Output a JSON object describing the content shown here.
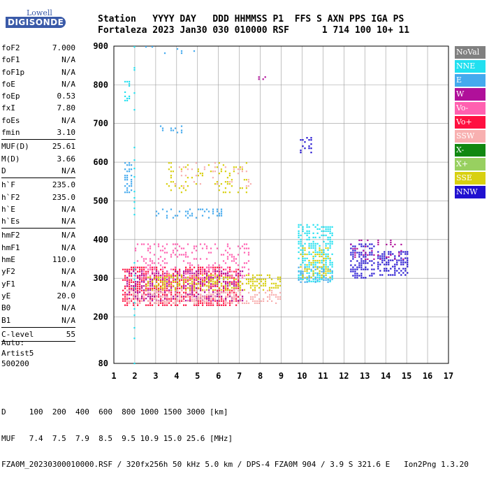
{
  "logo": {
    "line1": "Lowell",
    "line2": "DIGISONDE"
  },
  "header": {
    "row1": "Station   YYYY DAY   DDD HHMMSS P1  FFS S AXN PPS IGA PS",
    "row2": "Fortaleza 2023 Jan30 030 010000 RSF      1 714 100 10+ 11"
  },
  "params": [
    {
      "name": "foF2",
      "value": "7.000"
    },
    {
      "name": "foF1",
      "value": "N/A"
    },
    {
      "name": "foF1p",
      "value": "N/A"
    },
    {
      "name": "foE",
      "value": "N/A"
    },
    {
      "name": "foEp",
      "value": "0.53"
    },
    {
      "name": "fxI",
      "value": "7.80"
    },
    {
      "name": "foEs",
      "value": "N/A"
    },
    {
      "name": "fmin",
      "value": "3.10"
    },
    {
      "sep": true
    },
    {
      "name": "MUF(D)",
      "value": "25.61"
    },
    {
      "name": "M(D)",
      "value": "3.66"
    },
    {
      "name": "D",
      "value": "N/A"
    },
    {
      "sep": true
    },
    {
      "name": "h`F",
      "value": "235.0"
    },
    {
      "name": "h`F2",
      "value": "235.0"
    },
    {
      "name": "h`E",
      "value": "N/A"
    },
    {
      "name": "h`Es",
      "value": "N/A"
    },
    {
      "sep": true
    },
    {
      "name": "hmF2",
      "value": "N/A"
    },
    {
      "name": "hmF1",
      "value": "N/A"
    },
    {
      "name": "hmE",
      "value": "110.0"
    },
    {
      "name": "yF2",
      "value": "N/A"
    },
    {
      "name": "yF1",
      "value": "N/A"
    },
    {
      "name": "yE",
      "value": "20.0"
    },
    {
      "name": "B0",
      "value": "N/A"
    },
    {
      "name": "B1",
      "value": "N/A"
    },
    {
      "sep": true
    },
    {
      "name": "C-level",
      "value": "55"
    },
    {
      "sep": true
    }
  ],
  "auto": {
    "line1": "Auto:",
    "line2": "Artist5",
    "line3": "500200"
  },
  "legend": [
    {
      "label": "NoVal",
      "color": "#808080"
    },
    {
      "label": "NNE",
      "color": "#22e0f0"
    },
    {
      "label": "E",
      "color": "#44aaee"
    },
    {
      "label": "W",
      "color": "#b0109a"
    },
    {
      "label": "Vo-",
      "color": "#ff60b0"
    },
    {
      "label": "Vo+",
      "color": "#ff1040"
    },
    {
      "label": "SSW",
      "color": "#f8b0b0"
    },
    {
      "label": "X-",
      "color": "#118811"
    },
    {
      "label": "X+",
      "color": "#98d060"
    },
    {
      "label": "SSE",
      "color": "#d8d010"
    },
    {
      "label": "NNW",
      "color": "#2010d0"
    }
  ],
  "footer": {
    "line1": "D     100  200  400  600  800 1000 1500 3000 [km]",
    "line2": "MUF   7.4  7.5  7.9  8.5  9.5 10.9 15.0 25.6 [MHz]",
    "line3": "FZA0M_20230300010000.RSF / 320fx256h 50 kHz 5.0 km / DPS-4 FZA0M 904 / 3.9 S 321.6 E   Ion2Png 1.3.20"
  },
  "chart_data": {
    "type": "scatter",
    "title": "",
    "xlabel": "",
    "ylabel": "",
    "xlim": [
      1,
      17
    ],
    "ylim": [
      80,
      900
    ],
    "x_ticks": [
      1,
      2,
      3,
      4,
      5,
      6,
      7,
      8,
      9,
      10,
      11,
      12,
      13,
      14,
      15,
      16,
      17
    ],
    "y_ticks": [
      80,
      200,
      300,
      400,
      500,
      600,
      700,
      800,
      900
    ],
    "grid": true,
    "legend_position": "right",
    "clusters": [
      {
        "series": "Vo+",
        "x": [
          1.4,
          7.0
        ],
        "y": [
          230,
          330
        ],
        "density": 0.55
      },
      {
        "series": "W",
        "x": [
          1.6,
          7.2
        ],
        "y": [
          240,
          320
        ],
        "density": 0.35
      },
      {
        "series": "SSW",
        "x": [
          1.6,
          9.0
        ],
        "y": [
          235,
          270
        ],
        "density": 0.4
      },
      {
        "series": "SSE",
        "x": [
          2.5,
          9.0
        ],
        "y": [
          270,
          310
        ],
        "density": 0.45
      },
      {
        "series": "Vo-",
        "x": [
          2.0,
          7.5
        ],
        "y": [
          300,
          390
        ],
        "density": 0.2
      },
      {
        "series": "NNE",
        "x": [
          9.8,
          11.5
        ],
        "y": [
          290,
          440
        ],
        "density": 0.45
      },
      {
        "series": "E",
        "x": [
          9.8,
          11.5
        ],
        "y": [
          290,
          330
        ],
        "density": 0.3
      },
      {
        "series": "SSE",
        "x": [
          9.9,
          11.4
        ],
        "y": [
          300,
          380
        ],
        "density": 0.35
      },
      {
        "series": "NNW",
        "x": [
          12.3,
          13.5
        ],
        "y": [
          300,
          390
        ],
        "density": 0.5
      },
      {
        "series": "NNW",
        "x": [
          13.6,
          15.1
        ],
        "y": [
          310,
          370
        ],
        "density": 0.5
      },
      {
        "series": "W",
        "x": [
          12.3,
          15.0
        ],
        "y": [
          350,
          400
        ],
        "density": 0.15
      },
      {
        "series": "E",
        "x": [
          3.0,
          6.2
        ],
        "y": [
          455,
          480
        ],
        "density": 0.25
      },
      {
        "series": "SSE",
        "x": [
          3.5,
          7.4
        ],
        "y": [
          520,
          600
        ],
        "density": 0.12
      },
      {
        "series": "SSW",
        "x": [
          3.8,
          7.6
        ],
        "y": [
          540,
          600
        ],
        "density": 0.08
      },
      {
        "series": "E",
        "x": [
          1.5,
          1.9
        ],
        "y": [
          520,
          600
        ],
        "density": 0.4
      },
      {
        "series": "NNE",
        "x": [
          1.5,
          1.8
        ],
        "y": [
          760,
          810
        ],
        "density": 0.4
      },
      {
        "series": "E",
        "x": [
          3.2,
          4.5
        ],
        "y": [
          675,
          695
        ],
        "density": 0.15
      },
      {
        "series": "NNW",
        "x": [
          9.9,
          10.5
        ],
        "y": [
          625,
          665
        ],
        "density": 0.3
      },
      {
        "series": "W",
        "x": [
          7.9,
          8.3
        ],
        "y": [
          812,
          822
        ],
        "density": 0.3
      },
      {
        "series": "E",
        "x": [
          2.5,
          5.5
        ],
        "y": [
          880,
          900
        ],
        "density": 0.05
      },
      {
        "series": "NNE",
        "x": [
          1.95,
          2.05
        ],
        "y": [
          80,
          900
        ],
        "density": 0.2
      }
    ]
  }
}
